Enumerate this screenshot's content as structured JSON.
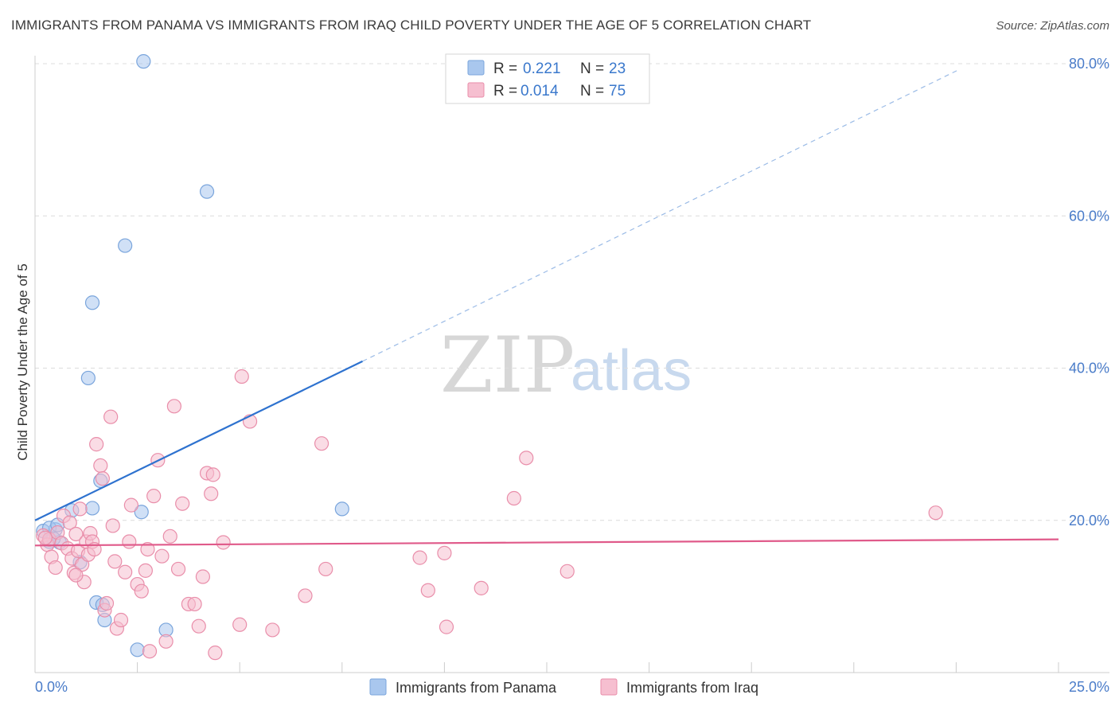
{
  "title": "IMMIGRANTS FROM PANAMA VS IMMIGRANTS FROM IRAQ CHILD POVERTY UNDER THE AGE OF 5 CORRELATION CHART",
  "source": "Source: ZipAtlas.com",
  "watermark": {
    "zip": "ZIP",
    "atlas": "atlas"
  },
  "chart_data": {
    "type": "scatter",
    "title": "IMMIGRANTS FROM PANAMA VS IMMIGRANTS FROM IRAQ CHILD POVERTY UNDER THE AGE OF 5 CORRELATION CHART",
    "ylabel": "Child Poverty Under the Age of 5",
    "xlabel": "",
    "xlim": [
      0,
      25
    ],
    "ylim": [
      0,
      80
    ],
    "x_tick_labels": [
      "0.0%",
      "25.0%"
    ],
    "y_ticks": [
      20,
      40,
      60,
      80
    ],
    "y_tick_labels": [
      "20.0%",
      "40.0%",
      "60.0%",
      "80.0%"
    ],
    "grid": true,
    "legend": [
      {
        "r_label": "R =",
        "r_value": "0.221",
        "n_label": "N =",
        "n_value": "23"
      },
      {
        "r_label": "R =",
        "r_value": "0.014",
        "n_label": "N =",
        "n_value": "75"
      }
    ],
    "series": [
      {
        "name": "Immigrants from Panama",
        "color": "#a9c7ee",
        "stroke": "#7aa5dc",
        "line_color": "#2e72cf",
        "trend": {
          "x0": 0,
          "y0": 20.0,
          "x1": 8.0,
          "y1": 40.9,
          "x_dash_end": 22.6,
          "y_dash_end": 79.3
        },
        "points": [
          [
            0.2,
            18.6
          ],
          [
            0.35,
            17.2
          ],
          [
            0.5,
            18.8
          ],
          [
            0.6,
            17.1
          ],
          [
            0.9,
            21.3
          ],
          [
            1.3,
            38.7
          ],
          [
            1.4,
            48.6
          ],
          [
            1.6,
            25.2
          ],
          [
            1.1,
            14.5
          ],
          [
            1.5,
            9.2
          ],
          [
            1.7,
            6.9
          ],
          [
            1.65,
            8.9
          ],
          [
            2.2,
            56.1
          ],
          [
            2.65,
            80.3
          ],
          [
            4.2,
            63.2
          ],
          [
            2.6,
            21.1
          ],
          [
            7.5,
            21.5
          ],
          [
            3.2,
            5.6
          ],
          [
            2.5,
            3.0
          ],
          [
            1.4,
            21.6
          ],
          [
            0.35,
            19.0
          ],
          [
            0.45,
            17.6
          ],
          [
            0.55,
            19.4
          ]
        ]
      },
      {
        "name": "Immigrants from Iraq",
        "color": "#f6bfd0",
        "stroke": "#e98eaa",
        "line_color": "#e05a8a",
        "trend": {
          "x0": 0,
          "y0": 16.7,
          "x1": 25,
          "y1": 17.5
        },
        "points": [
          [
            0.2,
            18.0
          ],
          [
            0.3,
            16.8
          ],
          [
            0.35,
            17.5
          ],
          [
            0.4,
            15.2
          ],
          [
            0.5,
            13.8
          ],
          [
            0.55,
            18.4
          ],
          [
            0.65,
            17.0
          ],
          [
            0.7,
            20.6
          ],
          [
            0.8,
            16.3
          ],
          [
            0.85,
            19.7
          ],
          [
            0.9,
            15.0
          ],
          [
            0.95,
            13.1
          ],
          [
            1.0,
            18.2
          ],
          [
            1.05,
            16.0
          ],
          [
            1.1,
            21.5
          ],
          [
            1.15,
            14.2
          ],
          [
            1.2,
            11.9
          ],
          [
            1.25,
            17.2
          ],
          [
            1.3,
            15.5
          ],
          [
            1.35,
            18.3
          ],
          [
            1.4,
            17.2
          ],
          [
            1.45,
            16.2
          ],
          [
            1.5,
            30.0
          ],
          [
            1.6,
            27.2
          ],
          [
            1.65,
            25.5
          ],
          [
            1.7,
            8.2
          ],
          [
            1.75,
            9.1
          ],
          [
            1.85,
            33.6
          ],
          [
            1.9,
            19.3
          ],
          [
            1.95,
            14.6
          ],
          [
            2.0,
            5.8
          ],
          [
            2.1,
            6.9
          ],
          [
            2.2,
            13.2
          ],
          [
            2.3,
            17.2
          ],
          [
            2.35,
            22.0
          ],
          [
            2.5,
            11.6
          ],
          [
            2.6,
            10.7
          ],
          [
            2.7,
            13.4
          ],
          [
            2.75,
            16.2
          ],
          [
            2.8,
            2.8
          ],
          [
            2.9,
            23.2
          ],
          [
            3.0,
            27.9
          ],
          [
            3.1,
            15.3
          ],
          [
            3.2,
            4.1
          ],
          [
            3.3,
            17.9
          ],
          [
            3.4,
            35.0
          ],
          [
            3.5,
            13.6
          ],
          [
            3.6,
            22.2
          ],
          [
            3.75,
            9.0
          ],
          [
            3.9,
            9.0
          ],
          [
            4.0,
            6.1
          ],
          [
            4.1,
            12.6
          ],
          [
            4.2,
            26.2
          ],
          [
            4.3,
            23.5
          ],
          [
            4.35,
            26.0
          ],
          [
            4.4,
            2.6
          ],
          [
            4.6,
            17.1
          ],
          [
            5.0,
            6.3
          ],
          [
            5.05,
            38.9
          ],
          [
            5.25,
            33.0
          ],
          [
            5.8,
            5.6
          ],
          [
            6.6,
            10.1
          ],
          [
            7.0,
            30.1
          ],
          [
            7.1,
            13.6
          ],
          [
            9.4,
            15.1
          ],
          [
            9.6,
            10.8
          ],
          [
            10.0,
            15.7
          ],
          [
            10.05,
            6.0
          ],
          [
            10.9,
            11.1
          ],
          [
            11.7,
            22.9
          ],
          [
            12.0,
            28.2
          ],
          [
            13.0,
            13.3
          ],
          [
            22.0,
            21.0
          ],
          [
            1.0,
            12.8
          ],
          [
            0.25,
            17.7
          ]
        ]
      }
    ]
  }
}
